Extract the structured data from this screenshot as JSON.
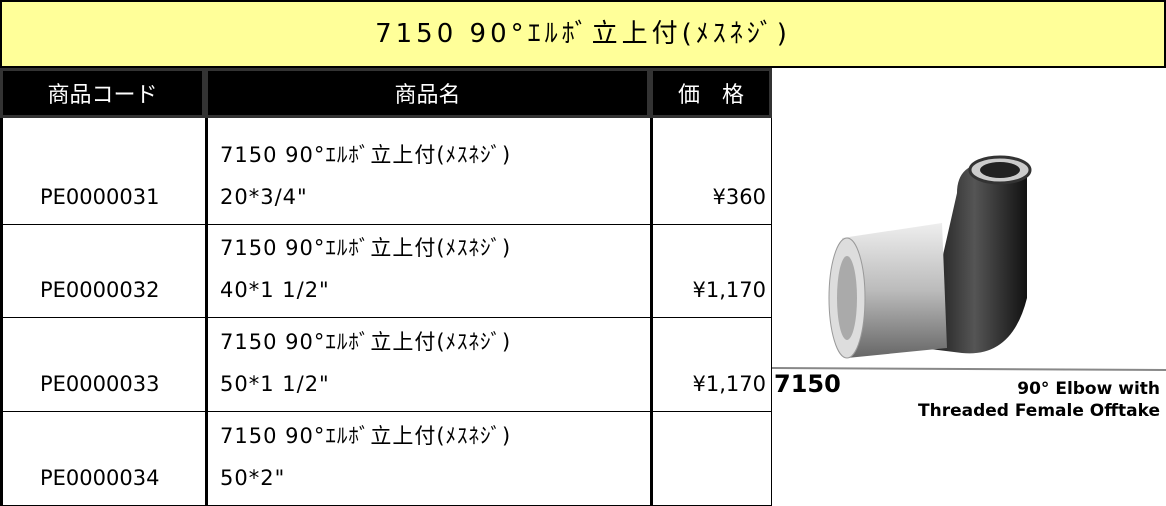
{
  "title": "7150 90°ｴﾙﾎﾞ立上付(ﾒｽﾈｼﾞ)",
  "table": {
    "headers": [
      "商品コード",
      "商品名",
      "価　格"
    ],
    "rows": [
      {
        "code": "PE0000031",
        "name": [
          "7150 90°ｴﾙﾎﾞ立上付(ﾒｽﾈｼﾞ)",
          "20*3/4\""
        ],
        "price": "¥360"
      },
      {
        "code": "PE0000032",
        "name": [
          "7150 90°ｴﾙﾎﾞ立上付(ﾒｽﾈｼﾞ)",
          "40*1 1/2\""
        ],
        "price": "¥1,170"
      },
      {
        "code": "PE0000033",
        "name": [
          "7150 90°ｴﾙﾎﾞ立上付(ﾒｽﾈｼﾞ)",
          "50*1 1/2\""
        ],
        "price": "¥1,170"
      },
      {
        "code": "PE0000034",
        "name": [
          "7150 90°ｴﾙﾎﾞ立上付(ﾒｽﾈｼﾞ)",
          "50*2\""
        ]
      }
    ]
  },
  "image": {
    "model": "7150",
    "caption": [
      "90° Elbow with",
      "Threaded Female Offtake"
    ]
  }
}
